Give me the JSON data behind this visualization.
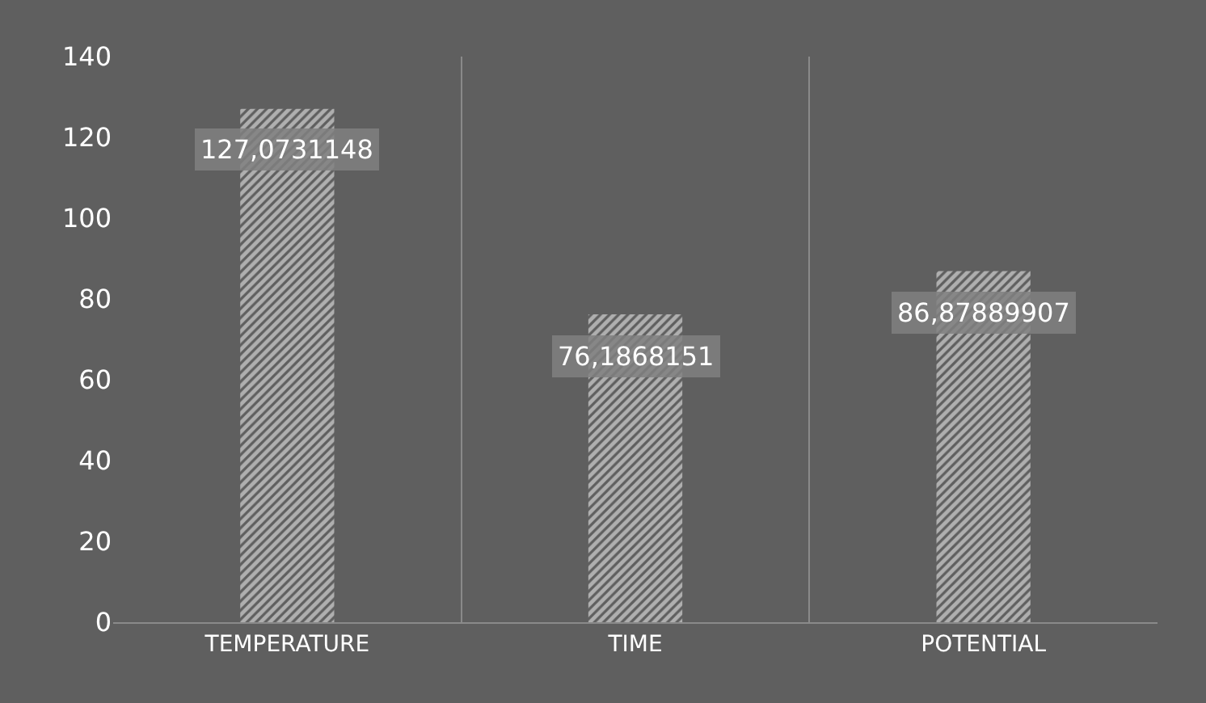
{
  "chart_data": {
    "type": "bar",
    "categories": [
      "TEMPERATURE",
      "TIME",
      "POTENTIAL"
    ],
    "values": [
      127.0731148,
      76.1868151,
      86.87889907
    ],
    "value_labels": [
      "127,0731148",
      "76,1868151",
      "86,87889907"
    ],
    "color": "#ffffff",
    "ylim": [
      0,
      140
    ],
    "yticks": [
      0,
      20,
      40,
      60,
      80,
      100,
      120,
      140
    ],
    "grid": "x",
    "legend": false
  }
}
